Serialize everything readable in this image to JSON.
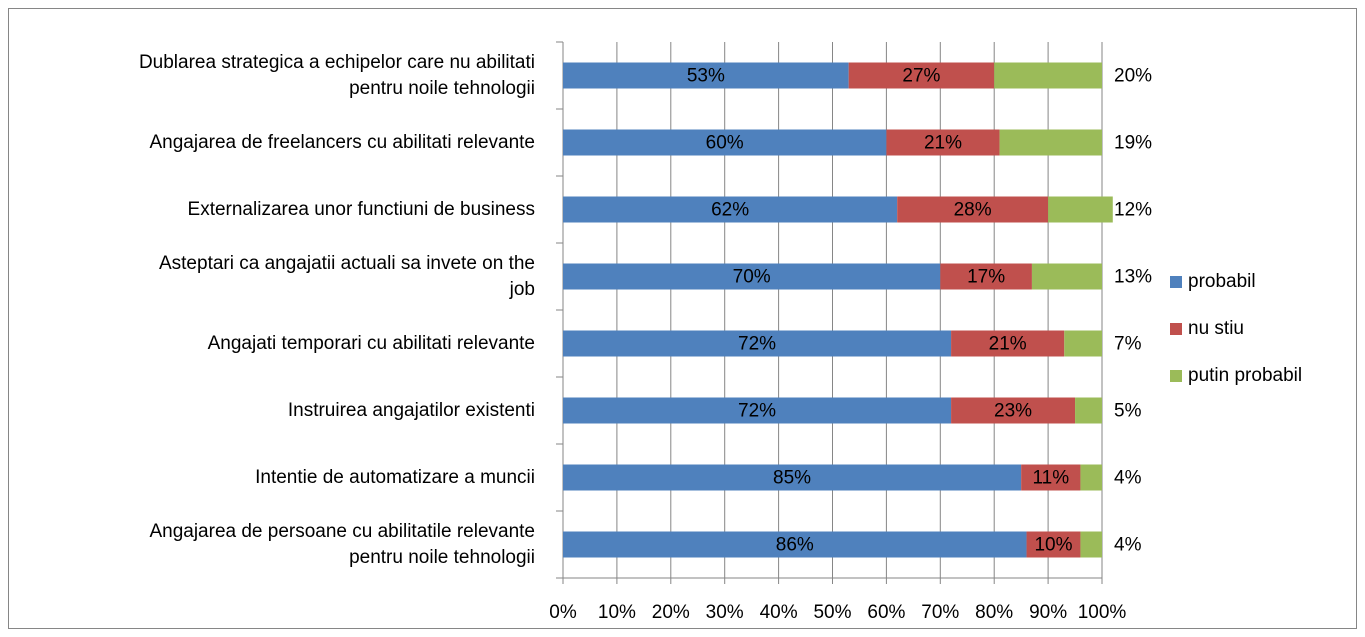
{
  "chart_data": {
    "type": "stacked_bar_horizontal",
    "categories": [
      "Dublarea strategica a echipelor care nu abilitati\npentru noile tehnologii",
      "Angajarea de freelancers cu abilitati relevante",
      "Externalizarea unor functiuni de business",
      "Asteptari ca angajatii actuali sa invete on the\njob",
      "Angajati temporari cu abilitati relevante",
      "Instruirea angajatilor existenti",
      "Intentie de automatizare a muncii",
      "Angajarea de persoane cu abilitatile relevante\npentru noile tehnologii"
    ],
    "series": [
      {
        "name": "probabil",
        "color": "#4f81bd",
        "values": [
          53,
          60,
          62,
          70,
          72,
          72,
          85,
          86
        ],
        "value_labels": [
          "53%",
          "60%",
          "62%",
          "70%",
          "72%",
          "72%",
          "85%",
          "86%"
        ]
      },
      {
        "name": "nu stiu",
        "color": "#c0504d",
        "values": [
          27,
          21,
          28,
          17,
          21,
          23,
          11,
          10
        ],
        "value_labels": [
          "27%",
          "21%",
          "28%",
          "17%",
          "21%",
          "23%",
          "11%",
          "10%"
        ]
      },
      {
        "name": "putin probabil",
        "color": "#9bbb59",
        "values": [
          20,
          19,
          12,
          13,
          7,
          5,
          4,
          4
        ],
        "value_labels": [
          "20%",
          "19%",
          "12%",
          "13%",
          "7%",
          "5%",
          "4%",
          "4%"
        ]
      }
    ],
    "xlim": [
      0,
      100
    ],
    "xticks": [
      {
        "value": 0,
        "label": "0%"
      },
      {
        "value": 10,
        "label": "10%"
      },
      {
        "value": 20,
        "label": "20%"
      },
      {
        "value": 30,
        "label": "30%"
      },
      {
        "value": 40,
        "label": "40%"
      },
      {
        "value": 50,
        "label": "50%"
      },
      {
        "value": 60,
        "label": "60%"
      },
      {
        "value": 70,
        "label": "70%"
      },
      {
        "value": 80,
        "label": "80%"
      },
      {
        "value": 90,
        "label": "90%"
      },
      {
        "value": 100,
        "label": "100%"
      }
    ],
    "grid": true,
    "legend": "right"
  }
}
